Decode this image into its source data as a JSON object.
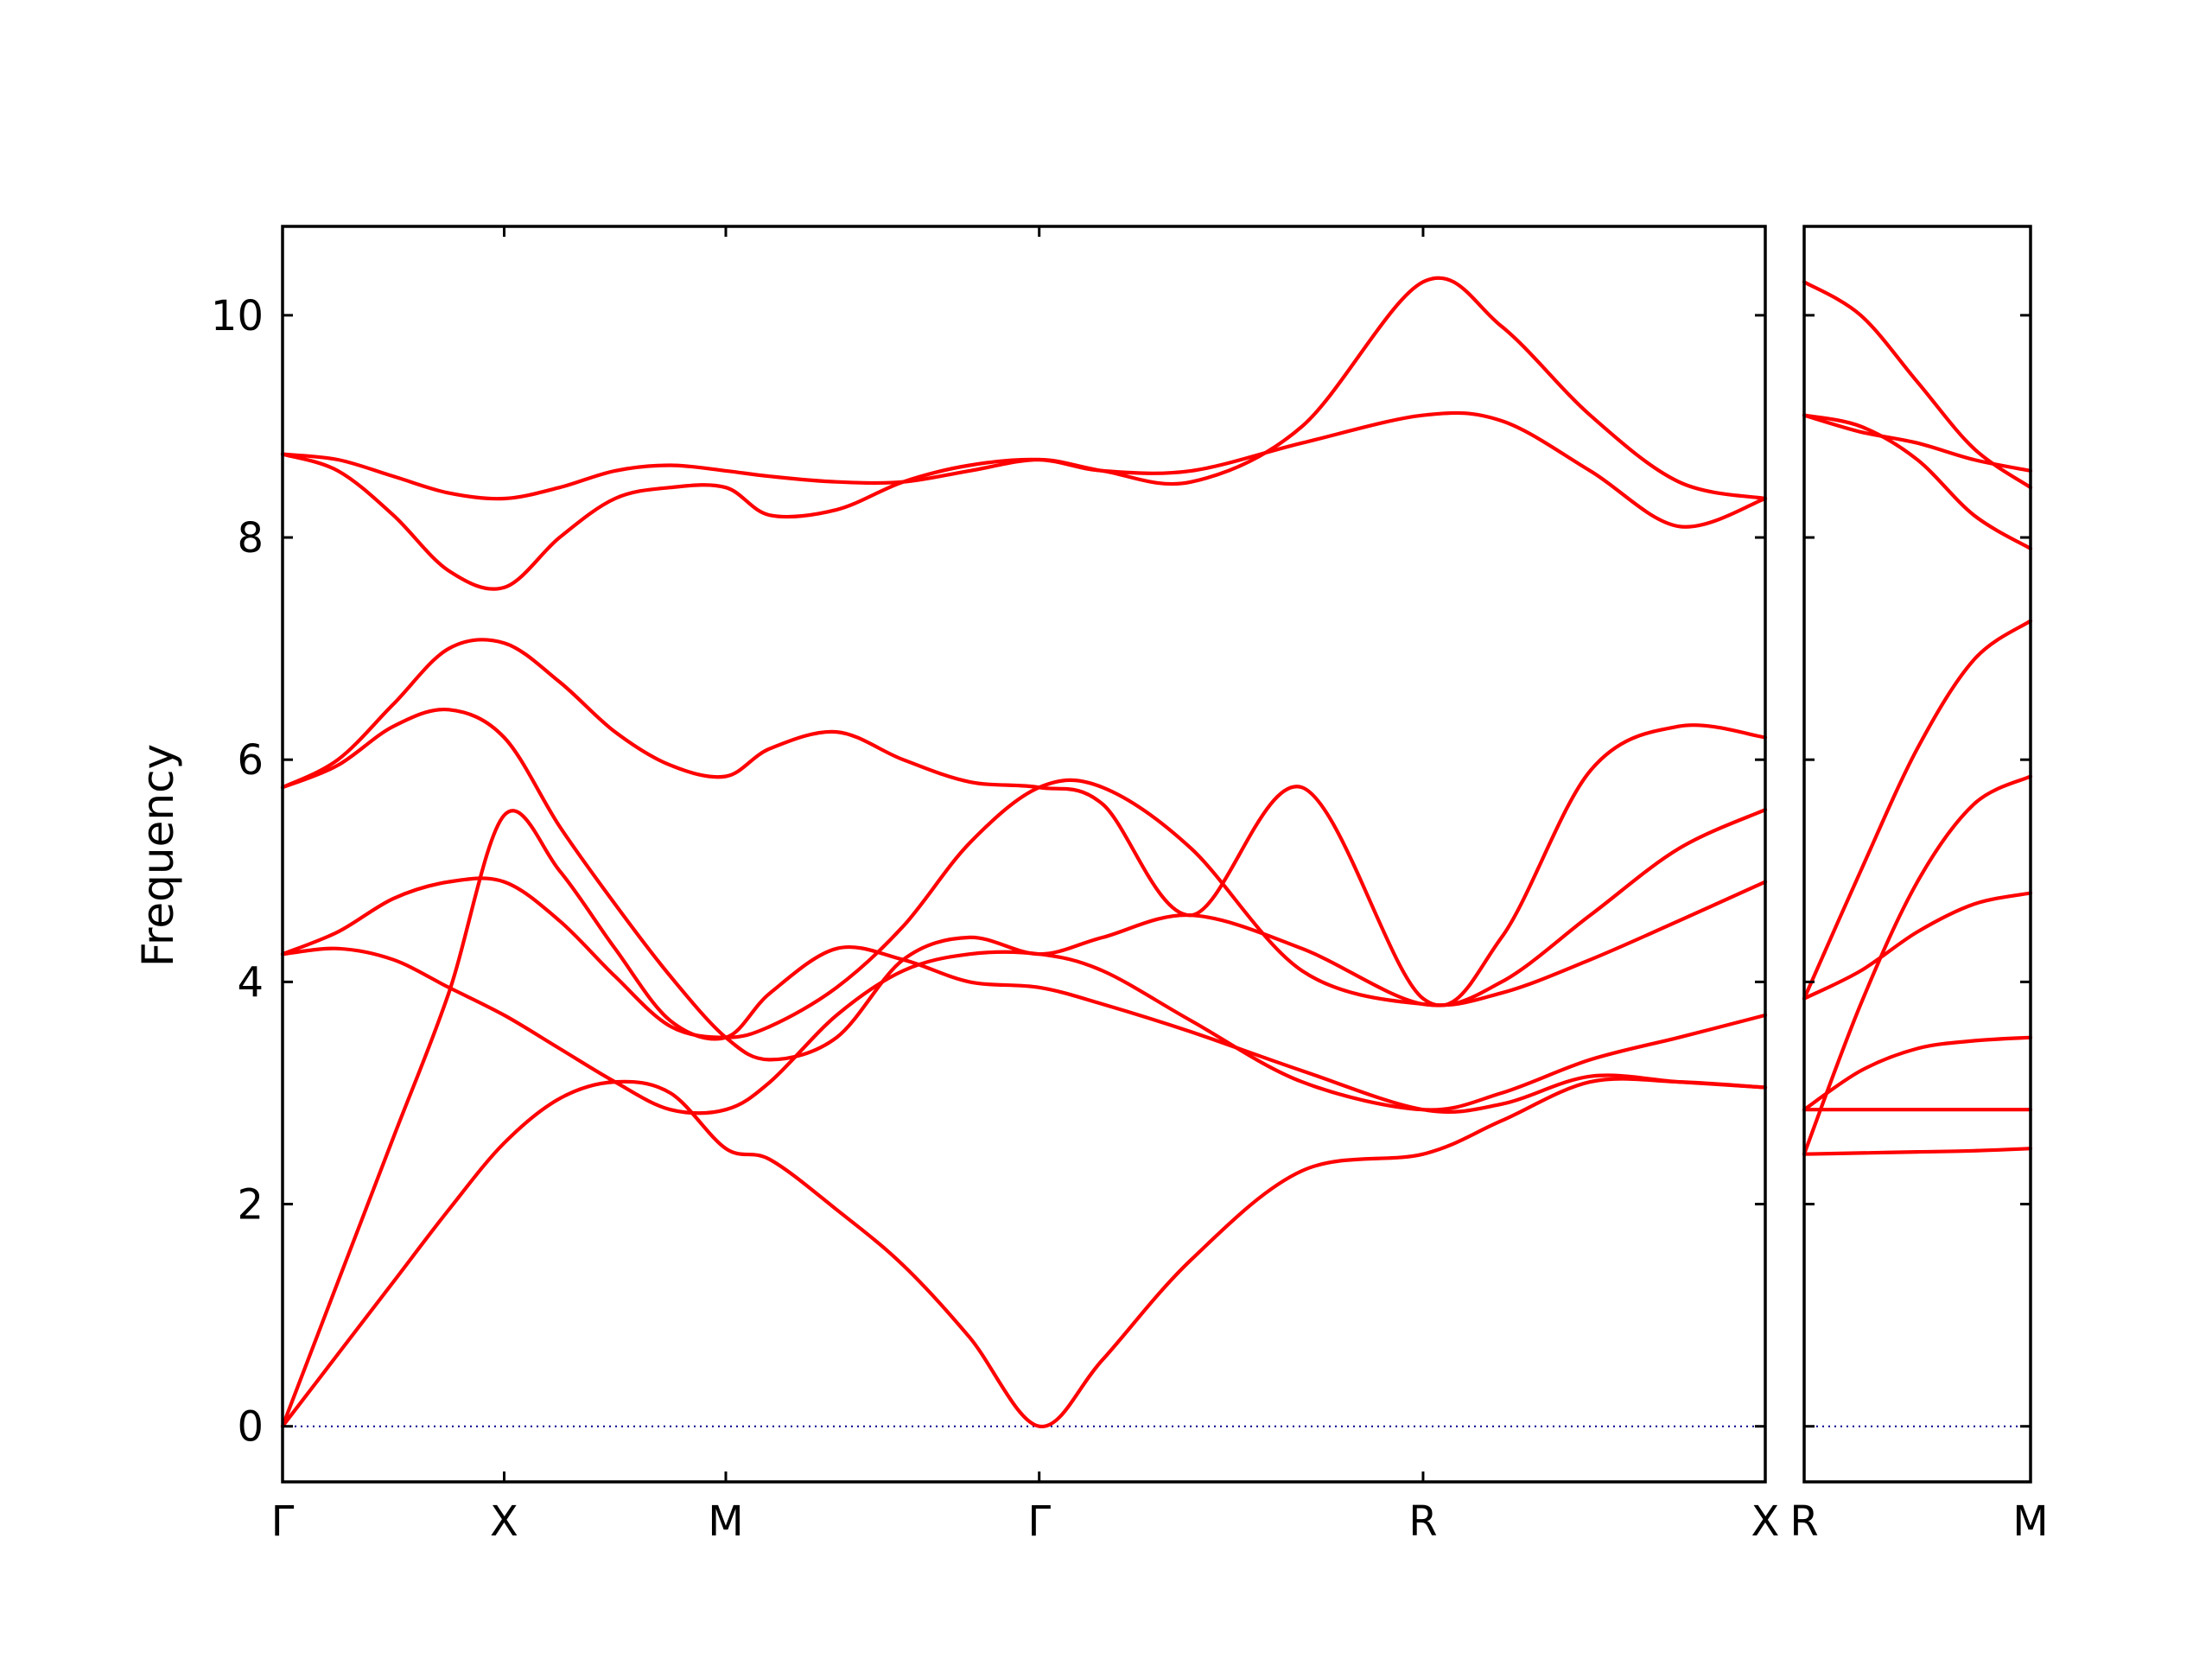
{
  "chart_data": {
    "type": "line",
    "title": "",
    "ylabel": "Frequency",
    "xlabel": "",
    "ylim": [
      -0.5,
      10.8
    ],
    "ytick_values": [
      0,
      2,
      4,
      6,
      8,
      10
    ],
    "ytick_labels": [
      "0",
      "2",
      "4",
      "6",
      "8",
      "10"
    ],
    "colors": {
      "bands": "#ff0000",
      "zero_line": "#00008b"
    },
    "panels": [
      {
        "xlim": [
          0,
          6.69
        ],
        "ticks": [
          {
            "x": 0,
            "label": "Γ"
          },
          {
            "x": 1,
            "label": "X"
          },
          {
            "x": 2,
            "label": "M"
          },
          {
            "x": 3.414,
            "label": "Γ"
          },
          {
            "x": 5.146,
            "label": "R"
          },
          {
            "x": 6.69,
            "label": "X"
          }
        ],
        "series": [
          {
            "x": [
              0,
              0.25,
              0.5,
              0.75,
              1.0,
              1.25,
              1.5,
              1.75,
              2.0,
              2.2,
              2.5,
              2.8,
              3.1,
              3.414,
              3.7,
              4.1,
              4.6,
              5.146,
              5.5,
              5.9,
              6.3,
              6.69
            ],
            "y": [
              0,
              0.65,
              1.3,
              1.95,
              2.55,
              2.95,
              3.1,
              3.0,
              2.5,
              2.4,
              1.95,
              1.45,
              0.8,
              0,
              0.6,
              1.5,
              2.3,
              2.45,
              2.75,
              3.1,
              3.1,
              3.05
            ]
          },
          {
            "x": [
              0,
              0.25,
              0.5,
              0.75,
              1.0,
              1.25,
              1.5,
              1.75,
              2.0,
              2.2,
              2.5,
              2.8,
              3.1,
              3.414,
              3.7,
              4.1,
              4.6,
              5.146,
              5.5,
              5.9,
              6.3,
              6.69
            ],
            "y": [
              0,
              1.3,
              2.6,
              3.9,
              5.5,
              5.0,
              4.3,
              3.65,
              3.5,
              3.9,
              4.3,
              4.2,
              4.0,
              3.95,
              3.8,
              3.55,
              3.2,
              2.85,
              2.9,
              3.15,
              3.1,
              3.05
            ]
          },
          {
            "x": [
              0,
              0.25,
              0.5,
              0.75,
              1.0,
              1.25,
              1.5,
              1.75,
              2.0,
              2.2,
              2.5,
              2.8,
              3.1,
              3.414,
              3.7,
              4.1,
              4.6,
              5.146,
              5.5,
              5.9,
              6.3,
              6.69
            ],
            "y": [
              4.25,
              4.3,
              4.2,
              3.95,
              3.7,
              3.4,
              3.1,
              2.85,
              2.85,
              3.1,
              3.7,
              4.1,
              4.25,
              4.25,
              4.1,
              3.65,
              3.1,
              2.85,
              3.0,
              3.3,
              3.5,
              3.7
            ]
          },
          {
            "x": [
              0,
              0.25,
              0.5,
              0.75,
              1.0,
              1.25,
              1.5,
              1.75,
              2.0,
              2.2,
              2.5,
              2.8,
              3.1,
              3.414,
              3.7,
              4.1,
              4.6,
              5.146,
              5.5,
              5.9,
              6.3,
              6.69
            ],
            "y": [
              4.25,
              4.45,
              4.75,
              4.9,
              4.9,
              4.55,
              4.05,
              3.6,
              3.5,
              3.6,
              3.95,
              4.5,
              5.25,
              5.75,
              5.75,
              5.2,
              4.1,
              3.8,
              3.9,
              4.2,
              4.55,
              4.9
            ]
          },
          {
            "x": [
              0,
              0.25,
              0.5,
              0.75,
              1.0,
              1.25,
              1.5,
              1.75,
              2.0,
              2.2,
              2.5,
              2.8,
              3.1,
              3.414,
              3.7,
              4.1,
              4.6,
              5.146,
              5.5,
              5.9,
              6.3,
              6.69
            ],
            "y": [
              5.75,
              5.95,
              6.3,
              6.45,
              6.2,
              5.4,
              4.7,
              4.05,
              3.5,
              3.3,
              3.5,
              4.2,
              4.4,
              4.25,
              4.4,
              4.6,
              4.3,
              3.8,
              4.0,
              4.6,
              5.2,
              5.55
            ]
          },
          {
            "x": [
              0,
              0.25,
              0.5,
              0.75,
              1.0,
              1.25,
              1.5,
              1.75,
              2.0,
              2.2,
              2.5,
              2.8,
              3.1,
              3.414,
              3.7,
              4.1,
              4.6,
              5.146,
              5.5,
              5.9,
              6.3,
              6.69
            ],
            "y": [
              5.75,
              6.0,
              6.5,
              7.0,
              7.05,
              6.7,
              6.25,
              5.95,
              5.85,
              6.1,
              6.25,
              6.0,
              5.8,
              5.75,
              5.6,
              4.6,
              5.75,
              3.85,
              4.4,
              5.9,
              6.3,
              6.2
            ]
          },
          {
            "x": [
              0,
              0.25,
              0.5,
              0.75,
              1.0,
              1.25,
              1.5,
              1.75,
              2.0,
              2.2,
              2.5,
              2.8,
              3.1,
              3.414,
              3.7,
              4.1,
              4.6,
              5.146,
              5.5,
              5.9,
              6.3,
              6.69
            ],
            "y": [
              8.75,
              8.6,
              8.2,
              7.7,
              7.55,
              8.0,
              8.35,
              8.45,
              8.45,
              8.2,
              8.25,
              8.5,
              8.65,
              8.7,
              8.6,
              8.6,
              8.85,
              9.1,
              9.05,
              8.6,
              8.1,
              8.35
            ]
          },
          {
            "x": [
              0,
              0.25,
              0.5,
              0.75,
              1.0,
              1.25,
              1.5,
              1.75,
              2.0,
              2.2,
              2.5,
              2.8,
              3.1,
              3.414,
              3.7,
              4.1,
              4.6,
              5.146,
              5.5,
              5.9,
              6.3,
              6.69
            ],
            "y": [
              8.75,
              8.7,
              8.55,
              8.4,
              8.35,
              8.45,
              8.6,
              8.65,
              8.6,
              8.55,
              8.5,
              8.5,
              8.6,
              8.7,
              8.6,
              8.5,
              9.0,
              10.3,
              9.9,
              9.1,
              8.5,
              8.35
            ]
          }
        ]
      },
      {
        "xlim": [
          0,
          1
        ],
        "ticks": [
          {
            "x": 0,
            "label": "R"
          },
          {
            "x": 1,
            "label": "M"
          }
        ],
        "series": [
          {
            "x": [
              0,
              0.25,
              0.5,
              0.75,
              1.0
            ],
            "y": [
              2.45,
              2.46,
              2.47,
              2.48,
              2.5
            ]
          },
          {
            "x": [
              0,
              0.25,
              0.5,
              0.75,
              1.0
            ],
            "y": [
              2.85,
              2.85,
              2.85,
              2.85,
              2.85
            ]
          },
          {
            "x": [
              0,
              0.25,
              0.5,
              0.75,
              1.0
            ],
            "y": [
              2.85,
              3.2,
              3.4,
              3.47,
              3.5
            ]
          },
          {
            "x": [
              0,
              0.25,
              0.5,
              0.75,
              1.0
            ],
            "y": [
              2.45,
              3.8,
              4.9,
              5.6,
              5.85
            ]
          },
          {
            "x": [
              0,
              0.25,
              0.5,
              0.75,
              1.0
            ],
            "y": [
              3.85,
              4.1,
              4.45,
              4.7,
              4.8
            ]
          },
          {
            "x": [
              0,
              0.25,
              0.5,
              0.75,
              1.0
            ],
            "y": [
              3.85,
              5.0,
              6.1,
              6.9,
              7.25
            ]
          },
          {
            "x": [
              0,
              0.25,
              0.5,
              0.75,
              1.0
            ],
            "y": [
              9.1,
              9.0,
              8.7,
              8.2,
              7.9
            ]
          },
          {
            "x": [
              0,
              0.25,
              0.5,
              0.75,
              1.0
            ],
            "y": [
              9.1,
              8.95,
              8.85,
              8.7,
              8.6
            ]
          },
          {
            "x": [
              0,
              0.25,
              0.5,
              0.75,
              1.0
            ],
            "y": [
              10.3,
              10.0,
              9.4,
              8.8,
              8.45
            ]
          }
        ]
      }
    ]
  }
}
